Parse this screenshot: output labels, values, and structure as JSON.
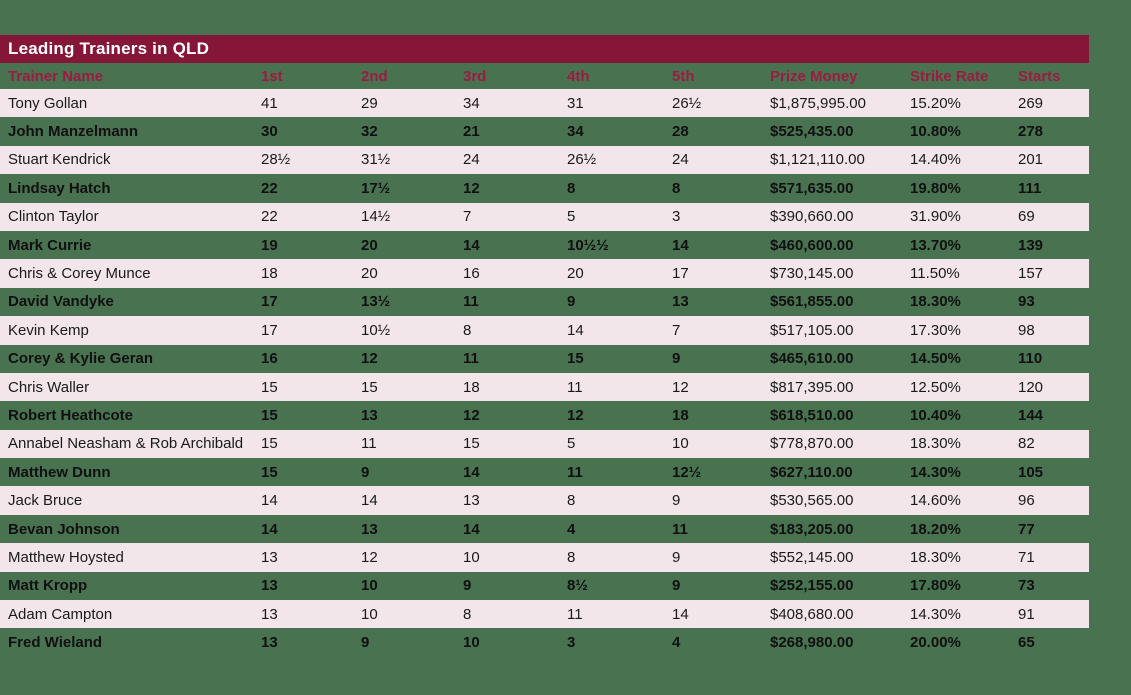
{
  "title": "Leading Trainers in QLD",
  "colors": {
    "background_green": "#497350",
    "title_bar_maroon": "#851638",
    "header_text_maroon": "#9B1B42",
    "row_pink": "#F2E6EA",
    "row_text": "#1a1a1a",
    "title_text": "#ffffff"
  },
  "chart_data": {
    "type": "table",
    "title": "Leading Trainers in QLD",
    "columns": [
      "Trainer Name",
      "1st",
      "2nd",
      "3rd",
      "4th",
      "5th",
      "Prize Money",
      "Strike Rate",
      "Starts"
    ],
    "rows": [
      [
        "Tony Gollan",
        "41",
        "29",
        "34",
        "31",
        "26½",
        "$1,875,995.00",
        "15.20%",
        "269"
      ],
      [
        "John Manzelmann",
        "30",
        "32",
        "21",
        "34",
        "28",
        "$525,435.00",
        "10.80%",
        "278"
      ],
      [
        "Stuart Kendrick",
        "28½",
        "31½",
        "24",
        "26½",
        "24",
        "$1,121,110.00",
        "14.40%",
        "201"
      ],
      [
        "Lindsay Hatch",
        "22",
        "17½",
        "12",
        "8",
        "8",
        "$571,635.00",
        "19.80%",
        "111"
      ],
      [
        "Clinton Taylor",
        "22",
        "14½",
        "7",
        "5",
        "3",
        "$390,660.00",
        "31.90%",
        "69"
      ],
      [
        "Mark Currie",
        "19",
        "20",
        "14",
        "10½½",
        "14",
        "$460,600.00",
        "13.70%",
        "139"
      ],
      [
        "Chris & Corey Munce",
        "18",
        "20",
        "16",
        "20",
        "17",
        "$730,145.00",
        "11.50%",
        "157"
      ],
      [
        "David Vandyke",
        "17",
        "13½",
        "11",
        "9",
        "13",
        "$561,855.00",
        "18.30%",
        "93"
      ],
      [
        "Kevin Kemp",
        "17",
        "10½",
        "8",
        "14",
        "7",
        "$517,105.00",
        "17.30%",
        "98"
      ],
      [
        "Corey & Kylie Geran",
        "16",
        "12",
        "11",
        "15",
        "9",
        "$465,610.00",
        "14.50%",
        "110"
      ],
      [
        "Chris Waller",
        "15",
        "15",
        "18",
        "11",
        "12",
        "$817,395.00",
        "12.50%",
        "120"
      ],
      [
        "Robert Heathcote",
        "15",
        "13",
        "12",
        "12",
        "18",
        "$618,510.00",
        "10.40%",
        "144"
      ],
      [
        "Annabel Neasham & Rob Archibald",
        "15",
        "11",
        "15",
        "5",
        "10",
        "$778,870.00",
        "18.30%",
        "82"
      ],
      [
        "Matthew Dunn",
        "15",
        "9",
        "14",
        "11",
        "12½",
        "$627,110.00",
        "14.30%",
        "105"
      ],
      [
        "Jack Bruce",
        "14",
        "14",
        "13",
        "8",
        "9",
        "$530,565.00",
        "14.60%",
        "96"
      ],
      [
        "Bevan Johnson",
        "14",
        "13",
        "14",
        "4",
        "11",
        "$183,205.00",
        "18.20%",
        "77"
      ],
      [
        "Matthew Hoysted",
        "13",
        "12",
        "10",
        "8",
        "9",
        "$552,145.00",
        "18.30%",
        "71"
      ],
      [
        "Matt Kropp",
        "13",
        "10",
        "9",
        "8½",
        "9",
        "$252,155.00",
        "17.80%",
        "73"
      ],
      [
        "Adam Campton",
        "13",
        "10",
        "8",
        "11",
        "14",
        "$408,680.00",
        "14.30%",
        "91"
      ],
      [
        "Fred Wieland",
        "13",
        "9",
        "10",
        "3",
        "4",
        "$268,980.00",
        "20.00%",
        "65"
      ]
    ]
  }
}
